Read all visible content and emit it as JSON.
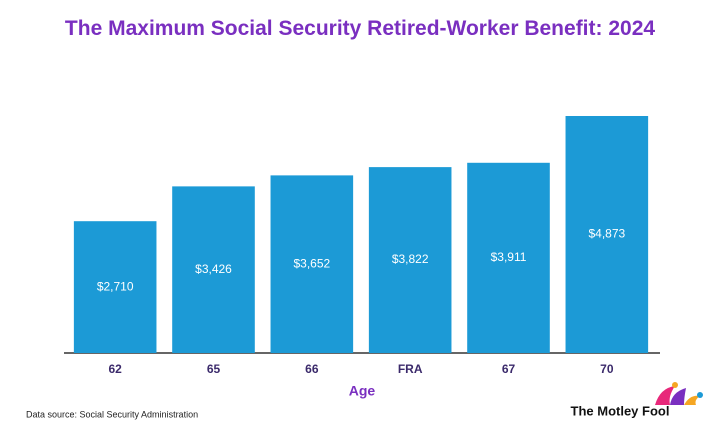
{
  "chart_data": {
    "type": "bar",
    "title": "The Maximum Social Security Retired-Worker Benefit: 2024",
    "categories": [
      "62",
      "65",
      "66",
      "FRA",
      "67",
      "70"
    ],
    "values": [
      2710,
      3426,
      3652,
      3822,
      3911,
      4873
    ],
    "value_labels": [
      "$2,710",
      "$3,426",
      "$3,652",
      "$3,822",
      "$3,911",
      "$4,873"
    ],
    "color": "#1c9ad6",
    "xlabel": "Age",
    "source": "Data source: Social Security Administration",
    "logo": "The Motley Fool"
  }
}
